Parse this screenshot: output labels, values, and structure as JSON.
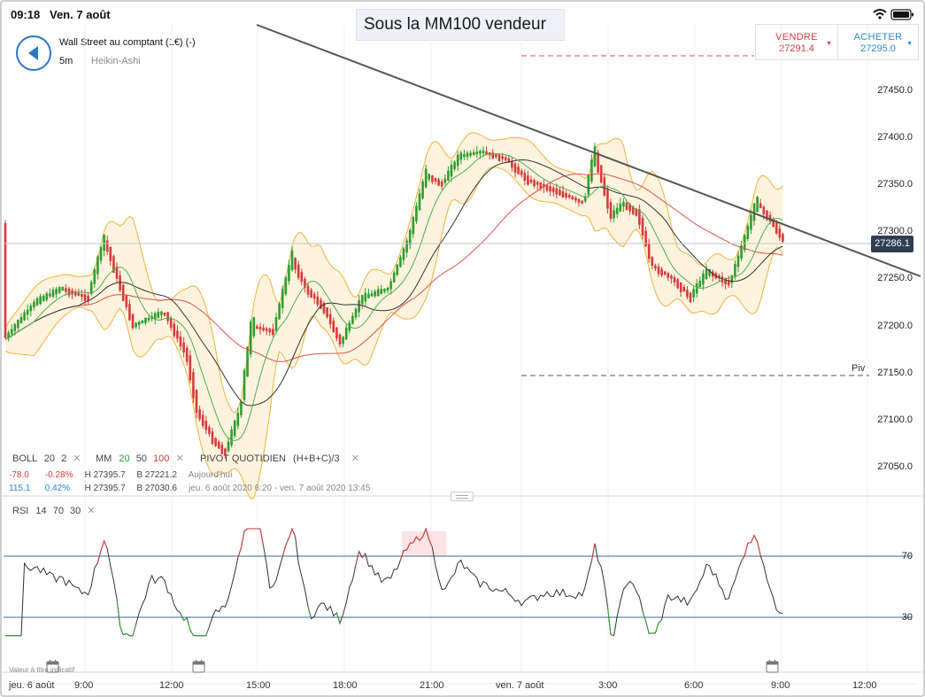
{
  "status": {
    "time": "09:18",
    "date": "Ven. 7 août"
  },
  "annotation": "Sous la MM100 vendeur",
  "instrument": {
    "name": "Wall Street au comptant (1€) (-)",
    "timeframe": "5m",
    "style": "Heikin-Ashi"
  },
  "trade": {
    "sell_label": "VENDRE",
    "sell_price": "27291.4",
    "buy_label": "ACHETER",
    "buy_price": "27295.0"
  },
  "price_axis": [
    "27450.0",
    "27400.0",
    "27350.0",
    "27300.0",
    "27250.0",
    "27200.0",
    "27150.0",
    "27100.0",
    "27050.0"
  ],
  "current_price": "27286.1",
  "pivot_label": "Piv",
  "legend": {
    "boll": {
      "name": "BOLL",
      "p1": "20",
      "p2": "2"
    },
    "mm": {
      "name": "MM",
      "p1": "20",
      "p2": "50",
      "p3": "100"
    },
    "pivot": {
      "name": "PIVOT QUOTIDIEN",
      "formula": "(H+B+C)/3"
    },
    "close_glyph": "✕",
    "row1": {
      "change": "-78.0",
      "pct": "-0.28%",
      "high": "H 27395.7",
      "low": "B 27221.2",
      "range": "Aujourd'hui"
    },
    "row2": {
      "change": "115.1",
      "pct": "0.42%",
      "high": "H 27395.7",
      "low": "B 27030.6",
      "range": "jeu. 6 août 2020 6:20 - ven. 7 août 2020 13:45"
    }
  },
  "rsi": {
    "name": "RSI",
    "p1": "14",
    "p2": "70",
    "p3": "30",
    "level_high": "70",
    "level_low": "30"
  },
  "footnote": "Valeur à titre indicatif",
  "time_axis": [
    "jeu. 6 août",
    "9:00",
    "12:00",
    "15:00",
    "18:00",
    "21:00",
    "ven. 7 août",
    "3:00",
    "6:00",
    "9:00",
    "12:00"
  ],
  "colors": {
    "bull": "#2e9e2e",
    "bear": "#d63b3b",
    "ma20": "#4caf50",
    "ma50": "#333333",
    "ma100": "#d9534f",
    "bollinger": "#f0b43a",
    "bollinger_fill": "#fdf3df",
    "trendline": "#555555",
    "accent": "#2b77c7"
  },
  "icons": {
    "back": "arrow-left-icon",
    "wifi": "wifi-icon",
    "battery": "battery-icon",
    "calendar": "calendar-icon"
  }
}
